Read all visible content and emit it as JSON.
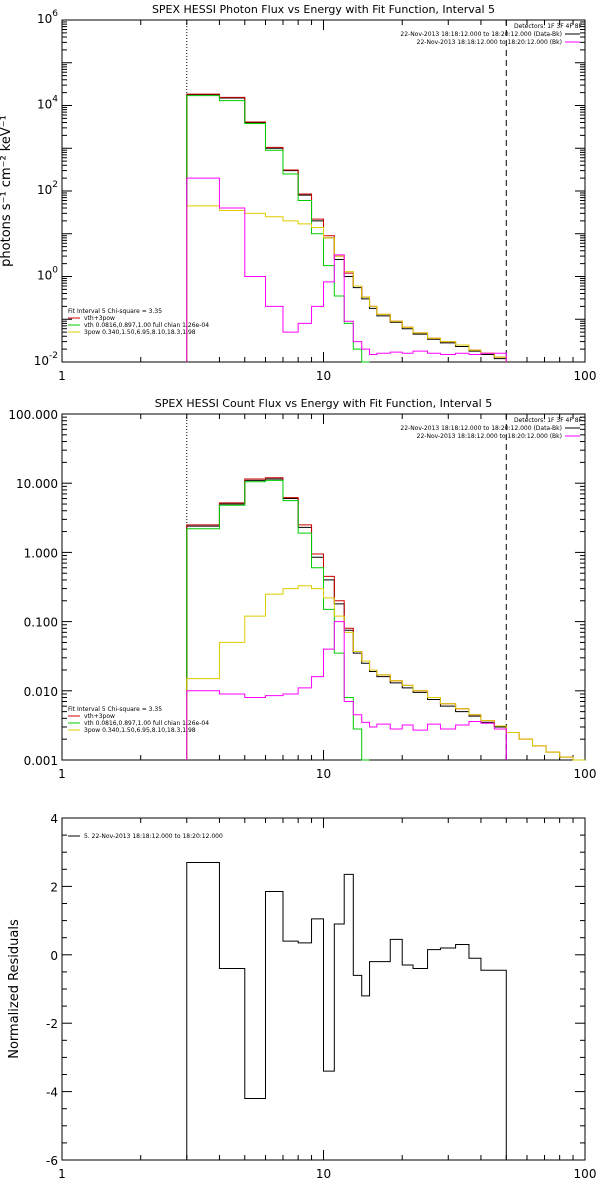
{
  "chart_data": [
    {
      "type": "line",
      "title": "SPEX HESSI Photon Flux vs Energy with Fit Function, Interval 5",
      "xlabel": "",
      "ylabel": "photons s⁻¹ cm⁻² keV⁻¹",
      "x_scale": "log",
      "y_scale": "log",
      "xlim": [
        1,
        100
      ],
      "ylim": [
        0.01,
        1000000
      ],
      "x_ticks": [
        {
          "v": 1,
          "label": "1"
        },
        {
          "v": 10,
          "label": "10"
        },
        {
          "v": 100,
          "label": "100"
        }
      ],
      "y_ticks": [
        {
          "v": 0.01,
          "label": "10",
          "exp": "-2"
        },
        {
          "v": 1,
          "label": "10",
          "exp": "0"
        },
        {
          "v": 100,
          "label": "10",
          "exp": "2"
        },
        {
          "v": 10000,
          "label": "10",
          "exp": "4"
        },
        {
          "v": 1000000,
          "label": "10",
          "exp": "6"
        }
      ],
      "vlines": [
        {
          "x": 3,
          "style": "dotted"
        },
        {
          "x": 50,
          "style": "dashed"
        }
      ],
      "legend_right": [
        {
          "text": "Detectors: 1F 3F 4F 8F",
          "color": "#000000",
          "line": false
        },
        {
          "text": "22-Nov-2013 18:18:12.000 to 18:20:12.000 (Data-Bk)",
          "color": "#000000",
          "line": true
        },
        {
          "text": "22-Nov-2013 18:18:12.000 to 18:20:12.000 (Bk)",
          "color": "#ff00ff",
          "line": true
        }
      ],
      "legend_left": [
        {
          "text": "Fit Interval 5   Chi-square = 3.35",
          "color": "#000000",
          "line": false
        },
        {
          "text": "vth+3pow",
          "color": "#cc0000",
          "line": true
        },
        {
          "text": "vth 0.0816,0.897,1.00  full chian 1.26e-04",
          "color": "#00cc00",
          "line": true
        },
        {
          "text": "3pow 0.340,1.50,6.95,8.10,18.3,1.98",
          "color": "#ddcc00",
          "line": true
        }
      ],
      "edges": [
        3.0,
        4.0,
        5.0,
        6.0,
        7.0,
        8.0,
        9.0,
        10.0,
        11.0,
        12.0,
        13.0,
        14.0,
        15.0,
        16.0,
        18.0,
        20.0,
        22.0,
        25.0,
        28.0,
        32.0,
        36.0,
        40.0,
        45.0,
        50.0
      ],
      "series": [
        {
          "color": "#000000",
          "values": [
            18000,
            15000,
            4000,
            1000,
            300,
            80,
            20,
            8,
            2.5,
            1.0,
            0.55,
            0.3,
            0.18,
            0.12,
            0.085,
            0.06,
            0.045,
            0.034,
            0.028,
            0.023,
            0.018,
            0.015,
            0.012
          ]
        },
        {
          "color": "#cc0000",
          "values": [
            18500,
            15500,
            4100,
            1050,
            310,
            85,
            22,
            9,
            3,
            1.2,
            0.6,
            0.33,
            0.2,
            0.13,
            0.09,
            0.065,
            0.048,
            0.036,
            0.03,
            0.025,
            0.019,
            0.016,
            0.013
          ]
        },
        {
          "color": "#00cc00",
          "values": [
            17000,
            13000,
            3800,
            900,
            250,
            60,
            10,
            1.8,
            0.35,
            0.08,
            0.02,
            0.01
          ]
        },
        {
          "color": "#ddcc00",
          "values": [
            45,
            35,
            30,
            25,
            20,
            17,
            14,
            8,
            3,
            1.3,
            0.6,
            0.33,
            0.2,
            0.13,
            0.09,
            0.065,
            0.048,
            0.036,
            0.03,
            0.025,
            0.019,
            0.016,
            0.013
          ]
        },
        {
          "color": "#ff00ff",
          "values": [
            200,
            40,
            1,
            0.2,
            0.05,
            0.08,
            0.2,
            0.75,
            3.2,
            0.09,
            0.03,
            0.02,
            0.015,
            0.016,
            0.017,
            0.016,
            0.018,
            0.016,
            0.015,
            0.016,
            0.015,
            0.016,
            0.016
          ]
        }
      ]
    },
    {
      "type": "line",
      "title": "SPEX HESSI Count Flux vs Energy with Fit Function, Interval 5",
      "xlabel": "",
      "ylabel": "",
      "x_scale": "log",
      "y_scale": "log",
      "xlim": [
        1,
        100
      ],
      "ylim": [
        0.001,
        100
      ],
      "x_ticks": [
        {
          "v": 1,
          "label": "1"
        },
        {
          "v": 10,
          "label": "10"
        },
        {
          "v": 100,
          "label": "100"
        }
      ],
      "y_ticks": [
        {
          "v": 0.001,
          "label": "0.001"
        },
        {
          "v": 0.01,
          "label": "0.010"
        },
        {
          "v": 0.1,
          "label": "0.100"
        },
        {
          "v": 1,
          "label": "1.000"
        },
        {
          "v": 10,
          "label": "10.000"
        },
        {
          "v": 100,
          "label": "100.000"
        }
      ],
      "vlines": [
        {
          "x": 3,
          "style": "dotted"
        },
        {
          "x": 50,
          "style": "dashed"
        }
      ],
      "legend_right": [
        {
          "text": "Detectors: 1F 3F 4F 8F",
          "color": "#000000",
          "line": false
        },
        {
          "text": "22-Nov-2013 18:18:12.000 to 18:20:12.000 (Data-Bk)",
          "color": "#000000",
          "line": true
        },
        {
          "text": "22-Nov-2013 18:18:12.000 to 18:20:12.000 (Bk)",
          "color": "#ff00ff",
          "line": true
        }
      ],
      "legend_left": [
        {
          "text": "Fit Interval 5   Chi-square = 3.35",
          "color": "#000000",
          "line": false
        },
        {
          "text": "vth+3pow",
          "color": "#cc0000",
          "line": true
        },
        {
          "text": "vth 0.0816,0.897,1.00  full chian 1.26e-04",
          "color": "#00cc00",
          "line": true
        },
        {
          "text": "3pow 0.340,1.50,6.95,8.10,18.3,1.98",
          "color": "#ddcc00",
          "line": true
        }
      ],
      "edges": [
        3.0,
        4.0,
        5.0,
        6.0,
        7.0,
        8.0,
        9.0,
        10.0,
        11.0,
        12.0,
        13.0,
        14.0,
        15.0,
        16.0,
        18.0,
        20.0,
        22.0,
        25.0,
        28.0,
        32.0,
        36.0,
        40.0,
        45.0,
        50.0,
        56.0,
        63.0,
        71.0,
        80.0,
        90.0,
        100.0
      ],
      "series": [
        {
          "color": "#000000",
          "values": [
            2.4,
            5.0,
            11.0,
            11.5,
            6.0,
            2.3,
            0.85,
            0.4,
            0.18,
            0.075,
            0.035,
            0.025,
            0.019,
            0.016,
            0.013,
            0.011,
            0.0095,
            0.0075,
            0.006,
            0.005,
            0.0043,
            0.0035,
            0.003
          ]
        },
        {
          "color": "#cc0000",
          "values": [
            2.5,
            5.2,
            11.5,
            12.0,
            6.2,
            2.5,
            0.95,
            0.45,
            0.2,
            0.08,
            0.037,
            0.027,
            0.02,
            0.017,
            0.014,
            0.012,
            0.01,
            0.008,
            0.0065,
            0.0055,
            0.0045,
            0.0037,
            0.0031,
            0.0025,
            0.002,
            0.0016,
            0.0013,
            0.0011,
            0.001
          ]
        },
        {
          "color": "#00cc00",
          "values": [
            2.2,
            4.8,
            10.5,
            11.0,
            5.6,
            1.9,
            0.6,
            0.15,
            0.035,
            0.008,
            0.0028,
            0.001
          ]
        },
        {
          "color": "#ddcc00",
          "values": [
            0.015,
            0.05,
            0.12,
            0.25,
            0.3,
            0.33,
            0.3,
            0.22,
            0.12,
            0.07,
            0.037,
            0.027,
            0.02,
            0.017,
            0.014,
            0.012,
            0.01,
            0.008,
            0.0065,
            0.0055,
            0.0045,
            0.0037,
            0.0031,
            0.0025,
            0.002,
            0.0016,
            0.0013,
            0.0011,
            0.001
          ]
        },
        {
          "color": "#ff00ff",
          "values": [
            0.01,
            0.009,
            0.008,
            0.0085,
            0.009,
            0.011,
            0.016,
            0.04,
            0.1,
            0.007,
            0.0045,
            0.0035,
            0.003,
            0.0033,
            0.0028,
            0.0032,
            0.0027,
            0.0033,
            0.0028,
            0.0032,
            0.0036,
            0.0034,
            0.0028
          ]
        }
      ]
    },
    {
      "type": "line",
      "title": "",
      "xlabel": "",
      "ylabel": "Normalized Residuals",
      "x_scale": "log",
      "y_scale": "linear",
      "xlim": [
        1,
        100
      ],
      "ylim": [
        -6,
        4
      ],
      "x_ticks": [
        {
          "v": 1,
          "label": "1"
        },
        {
          "v": 10,
          "label": "10"
        },
        {
          "v": 100,
          "label": "100"
        }
      ],
      "y_ticks": [
        {
          "v": -6,
          "label": "-6"
        },
        {
          "v": -4,
          "label": "-4"
        },
        {
          "v": -2,
          "label": "-2"
        },
        {
          "v": 0,
          "label": "0"
        },
        {
          "v": 2,
          "label": "2"
        },
        {
          "v": 4,
          "label": "4"
        }
      ],
      "legend_left": [
        {
          "text": "5. 22-Nov-2013 18:18:12.000 to 18:20:12.000",
          "color": "#000000",
          "line": true
        }
      ],
      "edges": [
        3.0,
        4.0,
        5.0,
        6.0,
        7.0,
        8.0,
        9.0,
        10.0,
        11.0,
        12.0,
        13.0,
        14.0,
        15.0,
        16.0,
        18.0,
        20.0,
        22.0,
        25.0,
        28.0,
        32.0,
        36.0,
        40.0,
        45.0,
        50.0
      ],
      "series": [
        {
          "color": "#000000",
          "values": [
            2.7,
            -0.4,
            -4.2,
            1.85,
            0.4,
            0.35,
            1.05,
            -3.4,
            0.9,
            2.35,
            -0.6,
            -1.2,
            -0.2,
            -0.2,
            0.45,
            -0.3,
            -0.4,
            0.15,
            0.2,
            0.3,
            -0.1,
            -0.45,
            -0.45
          ]
        }
      ]
    }
  ]
}
